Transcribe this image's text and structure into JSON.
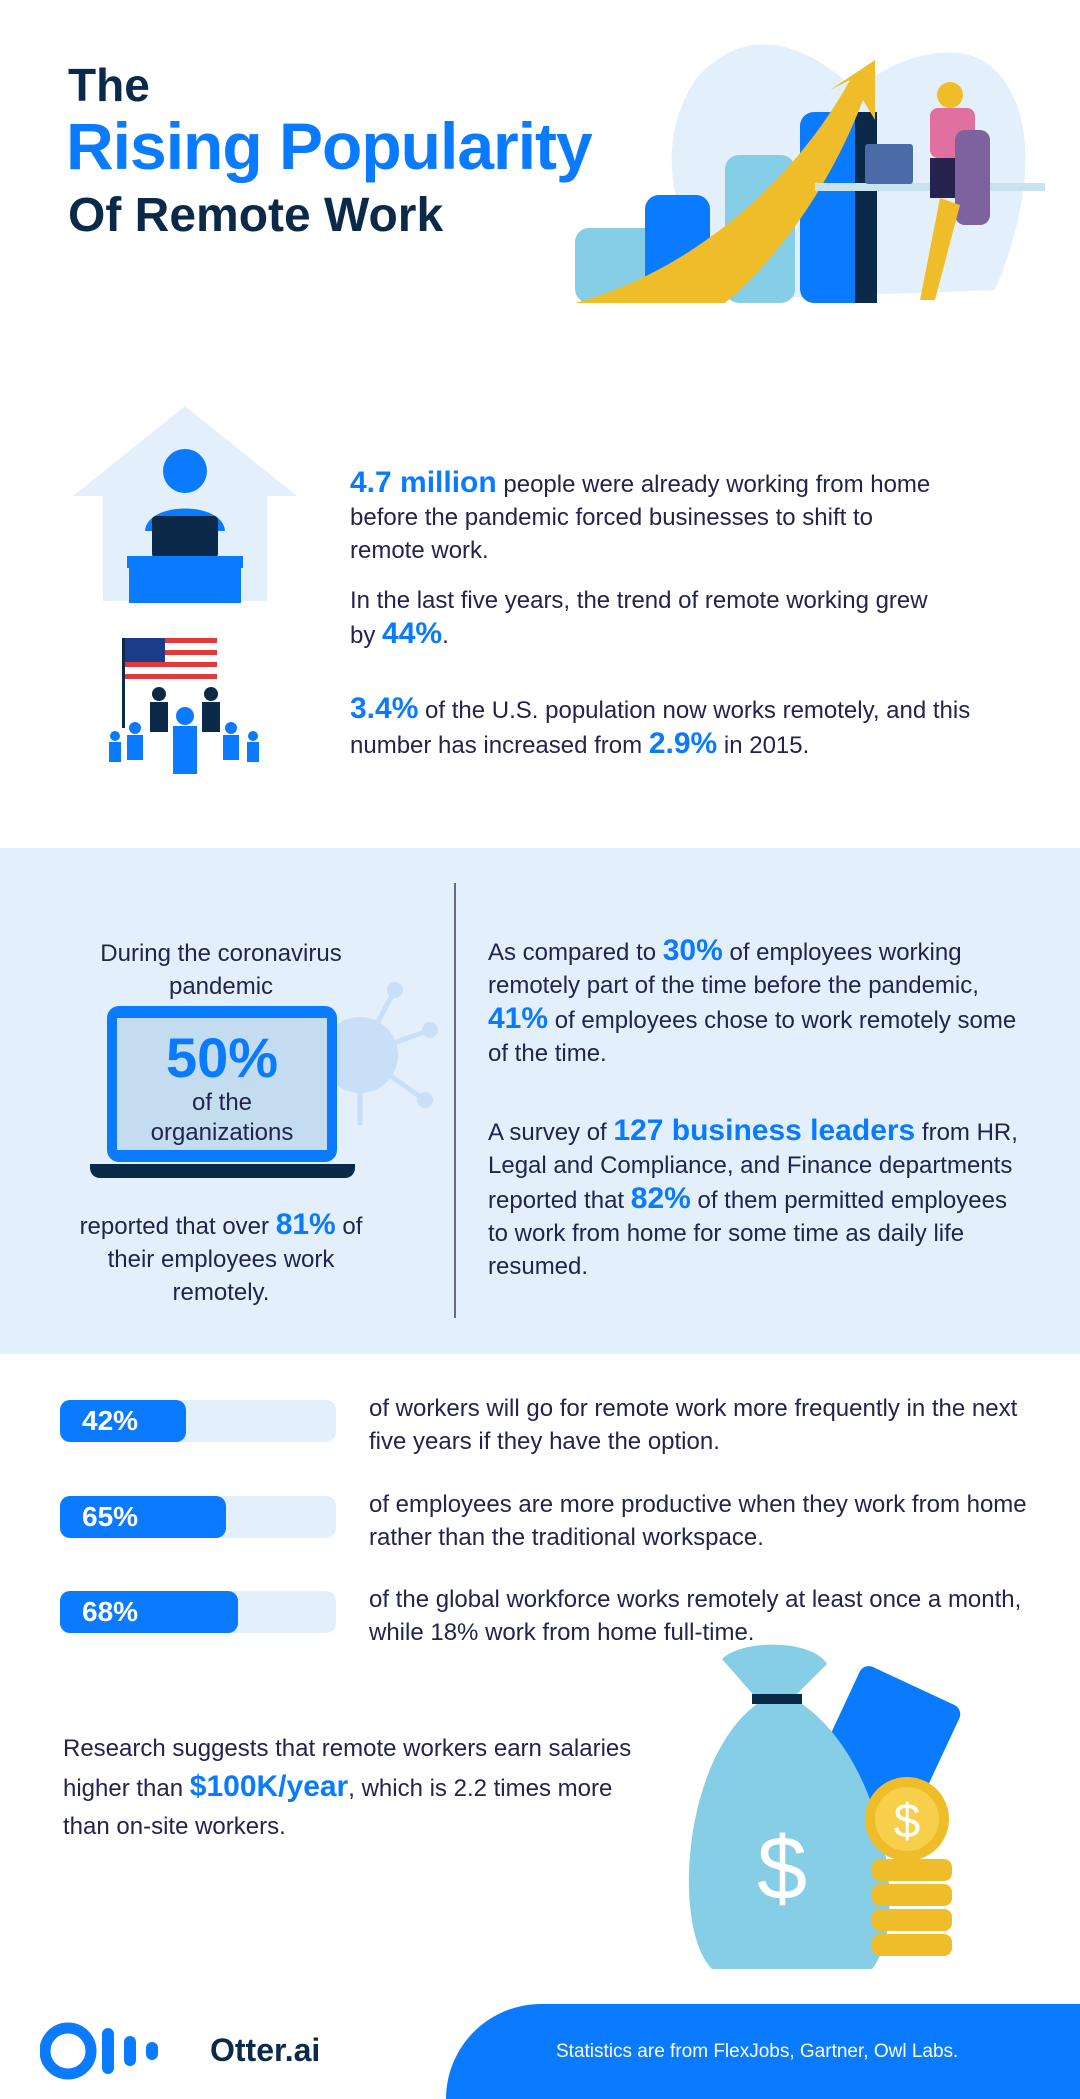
{
  "title": {
    "line1": "The",
    "line2": "Rising Popularity",
    "line3": "Of Remote Work"
  },
  "section1": {
    "p1": {
      "highlight": "4.7 million",
      "text": " people were already working from home before the pandemic forced businesses to shift to remote work."
    },
    "p2": {
      "text": "In the last five years, the trend of remote working grew by ",
      "highlight": "44%",
      "end": "."
    },
    "p3": {
      "highlight": "3.4%",
      "text": " of the U.S. population now works remotely, and this number has increased from ",
      "highlight2": "2.9%",
      "end": " in 2015."
    }
  },
  "section2": {
    "left": {
      "intro": "During the coronavirus pandemic",
      "big": "50%",
      "screen_text": "of the organizations",
      "outro_pre": "reported that over ",
      "outro_hl": "81%",
      "outro_post": " of their employees work remotely."
    },
    "right1": {
      "a": "As compared to ",
      "h1": "30%",
      "b": " of employees working remotely part of the time before the pandemic, ",
      "h2": "41%",
      "c": " of employees chose to work remotely some of the time."
    },
    "right2": {
      "a": "A survey of ",
      "h1": "127 business leaders",
      "b": " from HR, Legal and Compliance, and Finance departments reported that ",
      "h2": "82%",
      "c": " of them permitted employees to work from home for some time as daily life resumed."
    }
  },
  "bars": [
    {
      "label": "42%",
      "value": 42,
      "text": "of workers will go for remote work more frequently in the next five years if they have the option."
    },
    {
      "label": "65%",
      "value": 65,
      "text": "of employees are more productive when they work from home rather than the traditional workspace."
    },
    {
      "label": "68%",
      "value": 68,
      "text": "of the global workforce works remotely at least once a month, while 18% work from home full-time."
    }
  ],
  "salary": {
    "a": "Research suggests that remote workers earn salaries higher than ",
    "h": "$100K/year",
    "b": ", which is 2.2 times more than on-site workers."
  },
  "footer": {
    "brand": "Otter.ai",
    "source": "Statistics are from FlexJobs, Gartner, Owl Labs."
  },
  "colors": {
    "accent": "#0a7bff",
    "navy": "#0b2a4a",
    "band": "#e4effc"
  }
}
